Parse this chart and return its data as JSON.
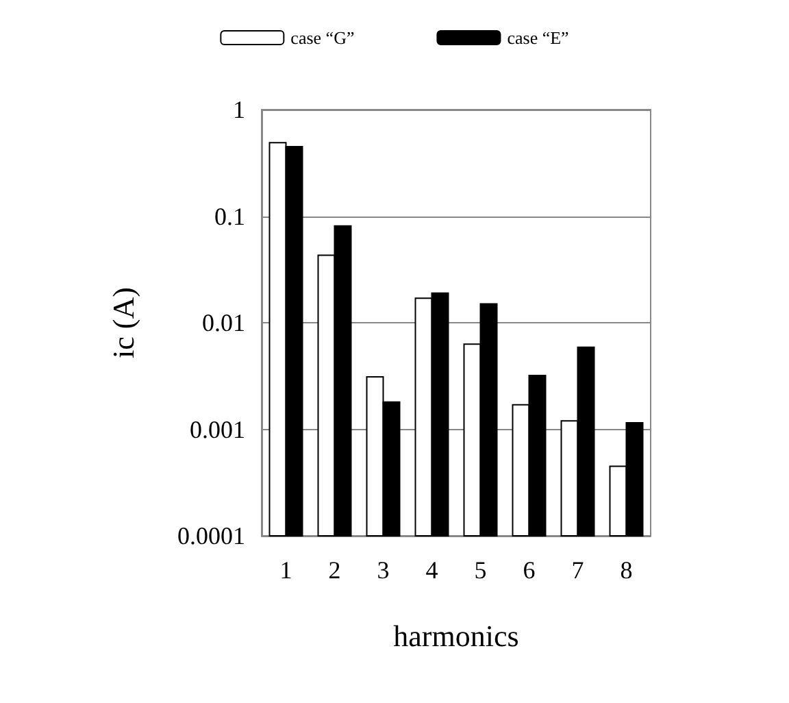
{
  "chart_data": {
    "type": "bar",
    "xlabel": "harmonics",
    "ylabel": "ic (A)",
    "categories": [
      "1",
      "2",
      "3",
      "4",
      "5",
      "6",
      "7",
      "8"
    ],
    "series": [
      {
        "name": "case “G”",
        "color": "#ffffff",
        "values": [
          0.49,
          0.043,
          0.0031,
          0.017,
          0.0063,
          0.0017,
          0.0012,
          0.00045
        ]
      },
      {
        "name": "case “E”",
        "color": "#000000",
        "values": [
          0.45,
          0.081,
          0.0018,
          0.019,
          0.015,
          0.0032,
          0.0059,
          0.00115
        ]
      }
    ],
    "log": "y",
    "ylim": [
      0.0001,
      1
    ],
    "yticks": [
      0.0001,
      0.001,
      0.01,
      0.1,
      1
    ],
    "grid": "y",
    "legend": "top"
  }
}
